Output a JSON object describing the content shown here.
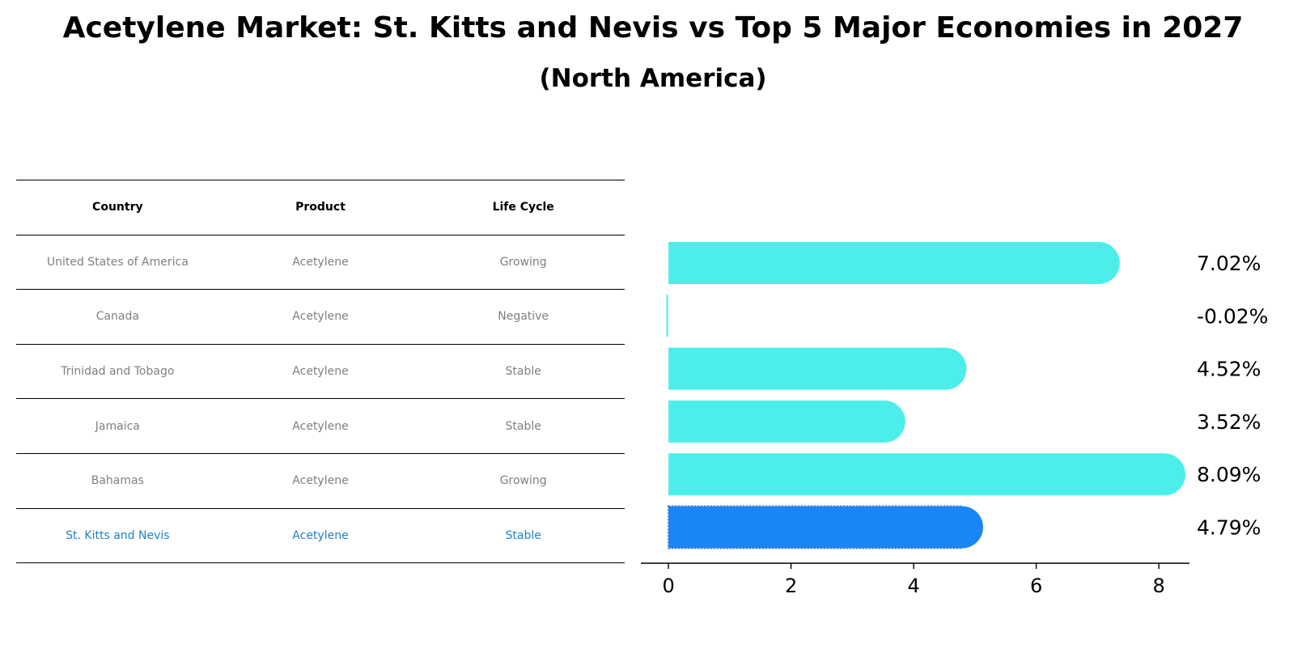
{
  "title": "Acetylene Market: St. Kitts and Nevis vs Top 5 Major Economies in 2027",
  "subtitle": "(North America)",
  "table": {
    "headers": [
      "Country",
      "Product",
      "Life Cycle"
    ],
    "rows": [
      {
        "country": "United States of America",
        "product": "Acetylene",
        "life_cycle": "Growing"
      },
      {
        "country": "Canada",
        "product": "Acetylene",
        "life_cycle": "Negative"
      },
      {
        "country": "Trinidad and Tobago",
        "product": "Acetylene",
        "life_cycle": "Stable"
      },
      {
        "country": "Jamaica",
        "product": "Acetylene",
        "life_cycle": "Stable"
      },
      {
        "country": "Bahamas",
        "product": "Acetylene",
        "life_cycle": "Growing"
      },
      {
        "country": "St. Kitts and Nevis",
        "product": "Acetylene",
        "life_cycle": "Stable"
      }
    ],
    "highlight_color": "#1f7fcc",
    "text_color": "#7f7f7f"
  },
  "chart_data": {
    "type": "bar",
    "orientation": "horizontal",
    "categories": [
      "United States of America",
      "Canada",
      "Trinidad and Tobago",
      "Jamaica",
      "Bahamas",
      "St. Kitts and Nevis"
    ],
    "values": [
      7.02,
      -0.02,
      4.52,
      3.52,
      8.09,
      4.79
    ],
    "value_labels": [
      "7.02%",
      "-0.02%",
      "4.52%",
      "3.52%",
      "8.09%",
      "4.79%"
    ],
    "highlight_index": 5,
    "bar_color": "#4deeea",
    "highlight_color": "#1a85f4",
    "xlim": [
      -0.45,
      8.5
    ],
    "xticks": [
      0,
      2,
      4,
      6,
      8
    ],
    "xlabel": "",
    "ylabel": "",
    "grid": false
  }
}
